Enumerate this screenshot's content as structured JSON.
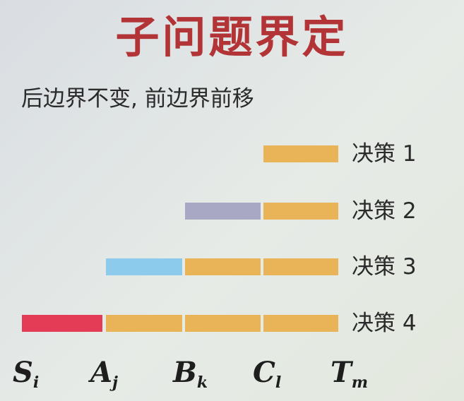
{
  "title": "子问题界定",
  "subtitle": "后边界不变, 前边界前移",
  "decisions": [
    {
      "label": "决策 1"
    },
    {
      "label": "决策 2"
    },
    {
      "label": "决策 3"
    },
    {
      "label": "决策 4"
    }
  ],
  "points": [
    {
      "letter": "S",
      "sub": "i"
    },
    {
      "letter": "A",
      "sub": "j"
    },
    {
      "letter": "B",
      "sub": "k"
    },
    {
      "letter": "C",
      "sub": "l"
    },
    {
      "letter": "T",
      "sub": "m"
    }
  ],
  "colors": {
    "title": "#b23436",
    "segment_orange": "#e8b457",
    "segment_purple": "#a8a8c4",
    "segment_blue": "#8ccbec",
    "segment_red": "#e43c57"
  }
}
